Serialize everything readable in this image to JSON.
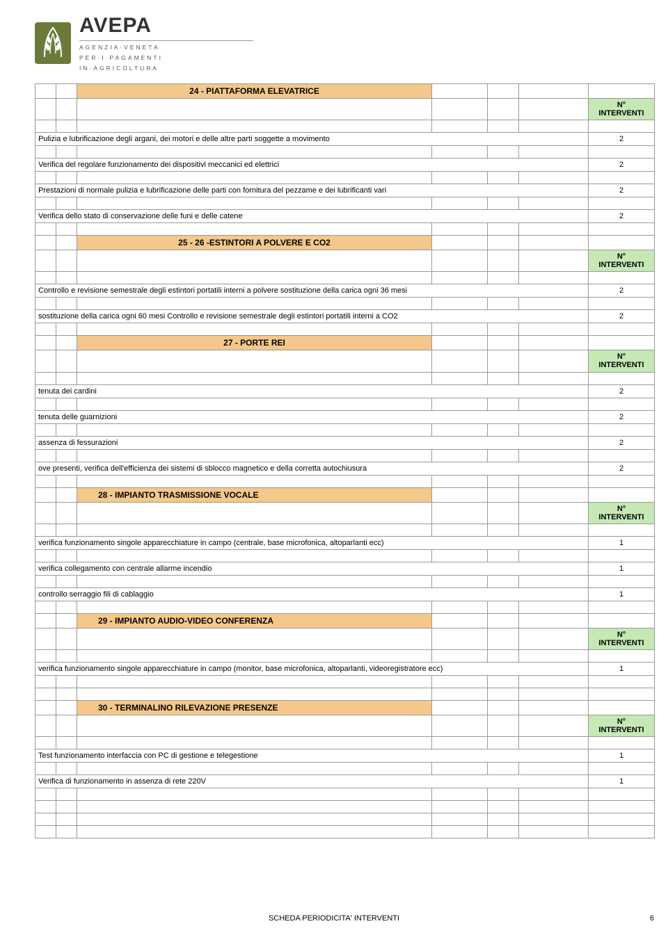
{
  "logo": {
    "title": "AVEPA",
    "sub1": "AGENZIA·VENETA",
    "sub2": "PER·I·PAGAMENTI",
    "sub3": "IN·AGRICOLTURA",
    "icon_color": "#6b7a3a"
  },
  "labels": {
    "interventi": "N° INTERVENTI"
  },
  "sections": [
    {
      "header": "24 - PIATTAFORMA ELEVATRICE",
      "align": "center",
      "rows": [
        {
          "text": "Pulizia e lubrificazione degli argani, dei motori e delle altre parti soggette a movimento",
          "val": "2"
        },
        {
          "text": "Verifica del regolare funzionamento dei dispositivi meccanici ed elettrici",
          "val": "2"
        },
        {
          "text": "Prestazioni di normale pulizia e lubrificazione delle parti con fornitura del pezzame e dei lubrificanti vari",
          "val": "2"
        },
        {
          "text": "Verifica dello stato di conservazione delle funi e delle catene",
          "val": "2"
        }
      ]
    },
    {
      "header": "25 - 26 -ESTINTORI A POLVERE E CO2",
      "align": "center",
      "rows": [
        {
          "text": "Controllo e revisione semestrale degli estintori portatili interni a polvere sostituzione della carica ogni 36 mesi",
          "val": "2"
        },
        {
          "text": "sostituzione della carica ogni 60 mesi Controllo e revisione semestrale degli estintori portatili interni a CO2",
          "val": "2"
        }
      ]
    },
    {
      "header": "27 - PORTE REI",
      "align": "center",
      "rows": [
        {
          "text": "tenuta dei cardini",
          "val": "2"
        },
        {
          "text": "tenuta delle guarnizioni",
          "val": "2"
        },
        {
          "text": "assenza di fessurazioni",
          "val": "2"
        },
        {
          "text": "ove presenti, verifica dell'efficienza dei sistemi di sblocco magnetico e della corretta autochiusura",
          "val": "2"
        }
      ]
    },
    {
      "header": "28 - IMPIANTO TRASMISSIONE VOCALE",
      "align": "left",
      "rows": [
        {
          "text": "verifica funzionamento singole apparecchiature in campo (centrale, base microfonica, altoparlanti ecc)",
          "val": "1"
        },
        {
          "text": "verifica collegamento con centrale allarme incendio",
          "val": "1"
        },
        {
          "text": "controllo serraggio fili di cablaggio",
          "val": "1"
        }
      ]
    },
    {
      "header": "29 - IMPIANTO AUDIO-VIDEO CONFERENZA",
      "align": "left",
      "rows": [
        {
          "text": "verifica funzionamento singole apparecchiature in campo (monitor, base microfonica, altoparlanti,  videoregistratore ecc)",
          "val": "1"
        }
      ],
      "extra_blank": true
    },
    {
      "header": "30 - TERMINALINO RILEVAZIONE PRESENZE",
      "align": "left",
      "rows": [
        {
          "text": " Test funzionamento interfaccia con PC di gestione e telegestione",
          "val": "1"
        },
        {
          "text": " Verifica di funzionamento in assenza di rete 220V",
          "val": "1"
        }
      ],
      "trailing_blanks": 3
    }
  ],
  "footer": {
    "text": "SCHEDA PERIODICITA' INTERVENTI",
    "page": "6"
  }
}
